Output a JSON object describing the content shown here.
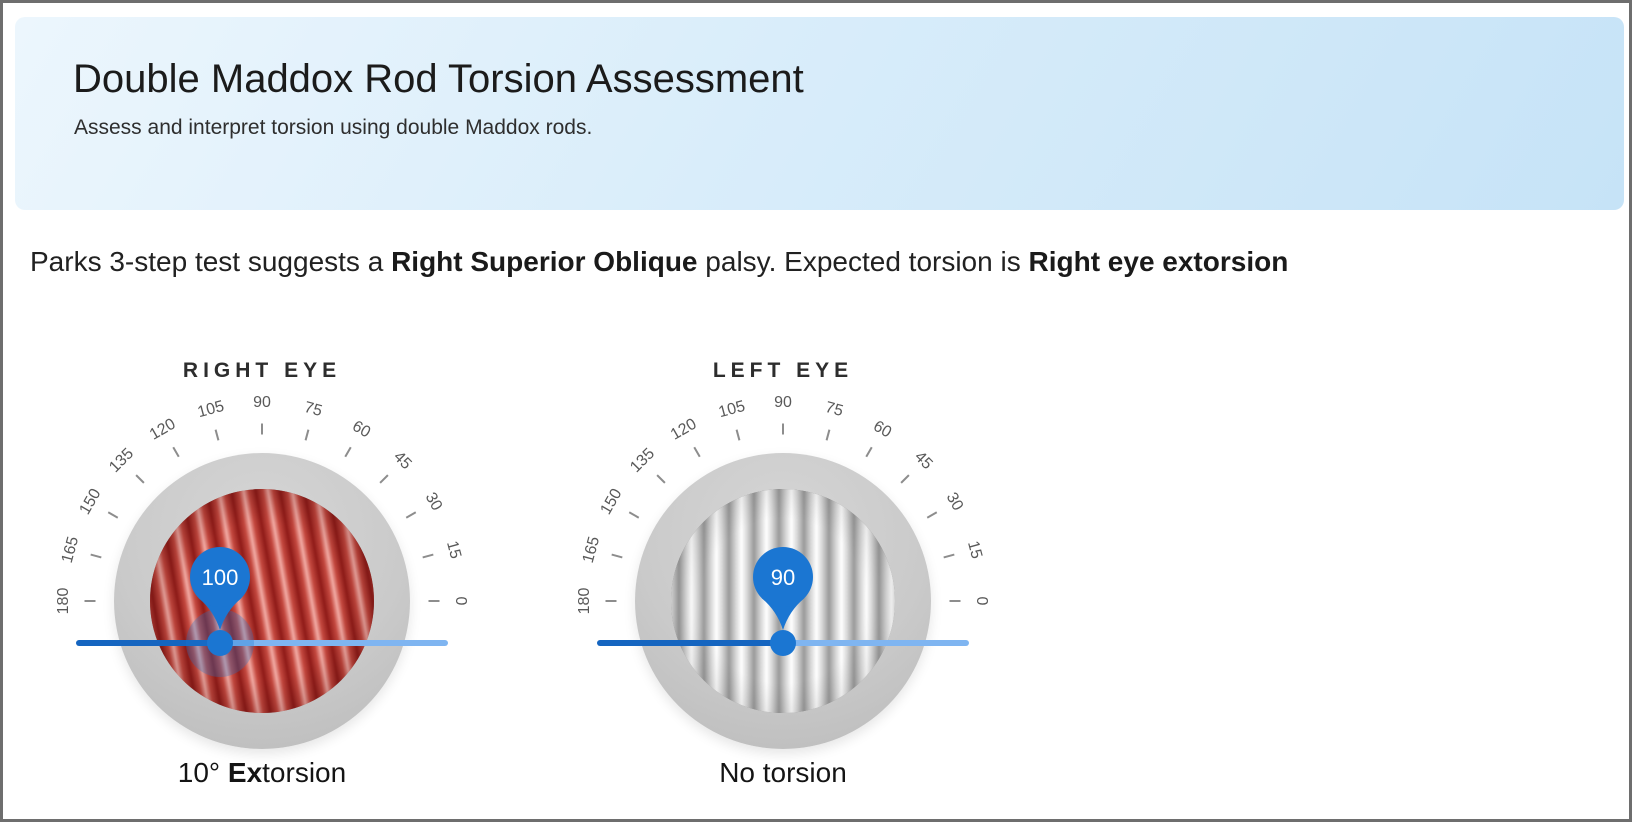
{
  "header": {
    "title": "Double Maddox Rod Torsion Assessment",
    "subtitle": "Assess and interpret torsion using double Maddox rods."
  },
  "statement": {
    "p1": "Parks 3-step test suggests a ",
    "p2": "Right Superior Oblique",
    "p3": " palsy. Expected torsion is ",
    "p4": "Right eye extorsion"
  },
  "dials": [
    {
      "id": "right-eye",
      "title": "RIGHT EYE",
      "value": 100,
      "value_label": "100",
      "ticks": [
        0,
        15,
        30,
        45,
        60,
        75,
        90,
        105,
        120,
        135,
        150,
        165,
        180
      ],
      "stripe_theme": "red",
      "stripe_tilt_deg": 10,
      "show_halo": true,
      "caption": {
        "pre": "10° ",
        "bold": "Ex",
        "post": "torsion"
      }
    },
    {
      "id": "left-eye",
      "title": "LEFT EYE",
      "value": 90,
      "value_label": "90",
      "ticks": [
        0,
        15,
        30,
        45,
        60,
        75,
        90,
        105,
        120,
        135,
        150,
        165,
        180
      ],
      "stripe_theme": "white",
      "stripe_tilt_deg": 0,
      "show_halo": false,
      "caption": {
        "pre": "No torsion",
        "bold": "",
        "post": ""
      }
    }
  ],
  "colors": {
    "accent": "#1b76d2",
    "track_active": "#1565c0",
    "track_inactive": "#7fb5f1",
    "halo": "rgba(25,118,210,0.30)"
  }
}
